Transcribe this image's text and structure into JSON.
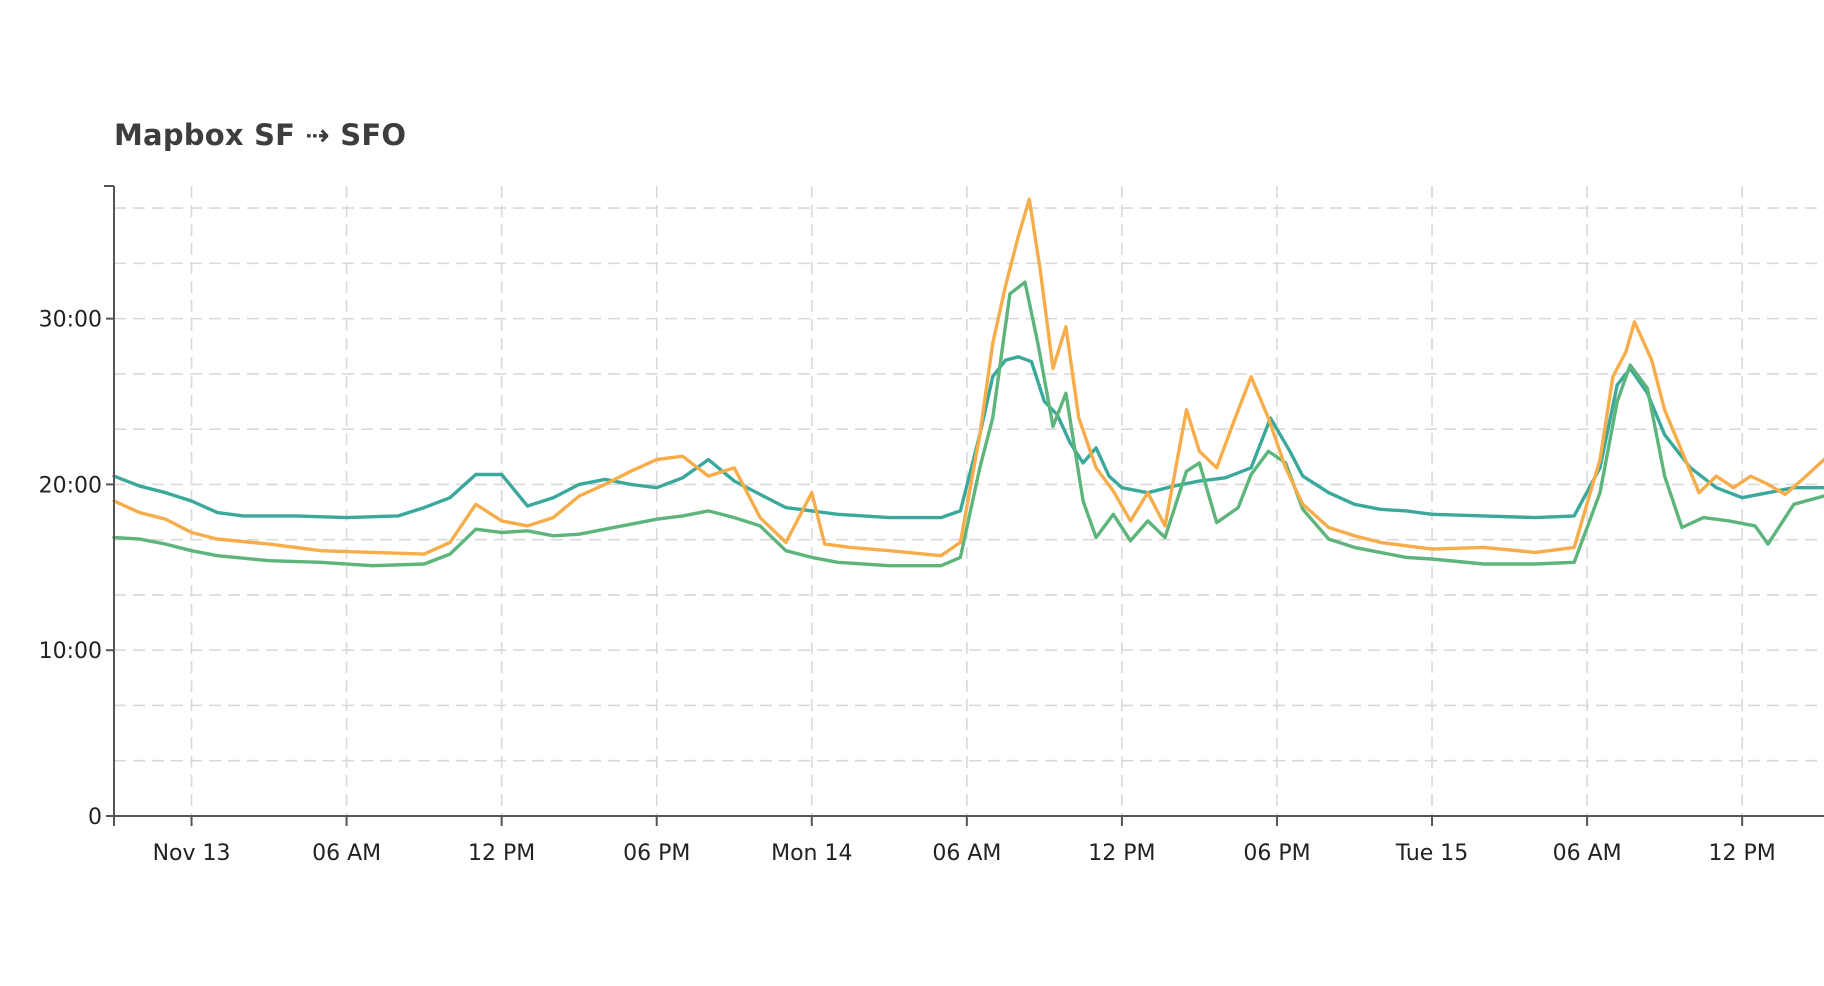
{
  "title": "Mapbox SF ⇢ SFO",
  "colors": {
    "series_a": "#3aa99b",
    "series_b": "#5db57c",
    "series_c": "#f6ad4a"
  },
  "chart_data": {
    "type": "line",
    "title": "Mapbox SF ⇢ SFO",
    "x_range": [
      "2016-11-12T21:00",
      "2016-11-15T15:10"
    ],
    "y_range_minutes": [
      0,
      38
    ],
    "y_ticks": [
      {
        "value": 0,
        "label": "0"
      },
      {
        "value": 10,
        "label": "10:00"
      },
      {
        "value": 20,
        "label": "20:00"
      },
      {
        "value": 30,
        "label": "30:00"
      }
    ],
    "x_ticks": [
      {
        "value": "2016-11-13T00:00",
        "label": "Nov 13"
      },
      {
        "value": "2016-11-13T06:00",
        "label": "06 AM"
      },
      {
        "value": "2016-11-13T12:00",
        "label": "12 PM"
      },
      {
        "value": "2016-11-13T18:00",
        "label": "06 PM"
      },
      {
        "value": "2016-11-14T00:00",
        "label": "Mon 14"
      },
      {
        "value": "2016-11-14T06:00",
        "label": "06 AM"
      },
      {
        "value": "2016-11-14T12:00",
        "label": "12 PM"
      },
      {
        "value": "2016-11-14T18:00",
        "label": "06 PM"
      },
      {
        "value": "2016-11-15T00:00",
        "label": "Tue 15"
      },
      {
        "value": "2016-11-15T06:00",
        "label": "06 AM"
      },
      {
        "value": "2016-11-15T12:00",
        "label": "12 PM"
      }
    ],
    "grid": true,
    "y_unit": "minutes",
    "series": [
      {
        "color": "#3aa99b",
        "points": [
          [
            "2016-11-12T21:00",
            20.5
          ],
          [
            "2016-11-12T22:00",
            19.9
          ],
          [
            "2016-11-12T23:00",
            19.5
          ],
          [
            "2016-11-13T00:00",
            19.0
          ],
          [
            "2016-11-13T01:00",
            18.3
          ],
          [
            "2016-11-13T02:00",
            18.1
          ],
          [
            "2016-11-13T04:00",
            18.1
          ],
          [
            "2016-11-13T06:00",
            18.0
          ],
          [
            "2016-11-13T08:00",
            18.1
          ],
          [
            "2016-11-13T09:00",
            18.6
          ],
          [
            "2016-11-13T10:00",
            19.2
          ],
          [
            "2016-11-13T11:00",
            20.6
          ],
          [
            "2016-11-13T12:00",
            20.6
          ],
          [
            "2016-11-13T13:00",
            18.7
          ],
          [
            "2016-11-13T14:00",
            19.2
          ],
          [
            "2016-11-13T15:00",
            20.0
          ],
          [
            "2016-11-13T16:00",
            20.3
          ],
          [
            "2016-11-13T17:00",
            20.0
          ],
          [
            "2016-11-13T18:00",
            19.8
          ],
          [
            "2016-11-13T19:00",
            20.4
          ],
          [
            "2016-11-13T20:00",
            21.5
          ],
          [
            "2016-11-13T21:00",
            20.2
          ],
          [
            "2016-11-13T22:00",
            19.4
          ],
          [
            "2016-11-13T23:00",
            18.6
          ],
          [
            "2016-11-14T00:00",
            18.4
          ],
          [
            "2016-11-14T01:00",
            18.2
          ],
          [
            "2016-11-14T03:00",
            18.0
          ],
          [
            "2016-11-14T05:00",
            18.0
          ],
          [
            "2016-11-14T05:45",
            18.4
          ],
          [
            "2016-11-14T06:30",
            23.0
          ],
          [
            "2016-11-14T07:00",
            26.5
          ],
          [
            "2016-11-14T07:30",
            27.5
          ],
          [
            "2016-11-14T08:00",
            27.7
          ],
          [
            "2016-11-14T08:30",
            27.4
          ],
          [
            "2016-11-14T09:00",
            25.0
          ],
          [
            "2016-11-14T09:30",
            24.2
          ],
          [
            "2016-11-14T10:00",
            22.5
          ],
          [
            "2016-11-14T10:30",
            21.3
          ],
          [
            "2016-11-14T11:00",
            22.2
          ],
          [
            "2016-11-14T11:30",
            20.5
          ],
          [
            "2016-11-14T12:00",
            19.8
          ],
          [
            "2016-11-14T13:00",
            19.5
          ],
          [
            "2016-11-14T14:00",
            19.9
          ],
          [
            "2016-11-14T15:00",
            20.2
          ],
          [
            "2016-11-14T16:00",
            20.4
          ],
          [
            "2016-11-14T17:00",
            21.0
          ],
          [
            "2016-11-14T17:45",
            24.0
          ],
          [
            "2016-11-14T18:30",
            22.0
          ],
          [
            "2016-11-14T19:00",
            20.5
          ],
          [
            "2016-11-14T20:00",
            19.5
          ],
          [
            "2016-11-14T21:00",
            18.8
          ],
          [
            "2016-11-14T22:00",
            18.5
          ],
          [
            "2016-11-14T23:00",
            18.4
          ],
          [
            "2016-11-15T00:00",
            18.2
          ],
          [
            "2016-11-15T02:00",
            18.1
          ],
          [
            "2016-11-15T04:00",
            18.0
          ],
          [
            "2016-11-15T05:30",
            18.1
          ],
          [
            "2016-11-15T06:30",
            21.0
          ],
          [
            "2016-11-15T07:10",
            26.0
          ],
          [
            "2016-11-15T07:40",
            27.0
          ],
          [
            "2016-11-15T08:20",
            25.5
          ],
          [
            "2016-11-15T09:00",
            23.0
          ],
          [
            "2016-11-15T10:00",
            21.0
          ],
          [
            "2016-11-15T11:00",
            19.8
          ],
          [
            "2016-11-15T12:00",
            19.2
          ],
          [
            "2016-11-15T13:00",
            19.5
          ],
          [
            "2016-11-15T14:00",
            19.8
          ],
          [
            "2016-11-15T15:10",
            19.8
          ]
        ]
      },
      {
        "color": "#5db57c",
        "points": [
          [
            "2016-11-12T21:00",
            16.8
          ],
          [
            "2016-11-12T22:00",
            16.7
          ],
          [
            "2016-11-12T23:00",
            16.4
          ],
          [
            "2016-11-13T00:00",
            16.0
          ],
          [
            "2016-11-13T01:00",
            15.7
          ],
          [
            "2016-11-13T03:00",
            15.4
          ],
          [
            "2016-11-13T05:00",
            15.3
          ],
          [
            "2016-11-13T07:00",
            15.1
          ],
          [
            "2016-11-13T09:00",
            15.2
          ],
          [
            "2016-11-13T10:00",
            15.8
          ],
          [
            "2016-11-13T11:00",
            17.3
          ],
          [
            "2016-11-13T12:00",
            17.1
          ],
          [
            "2016-11-13T13:00",
            17.2
          ],
          [
            "2016-11-13T14:00",
            16.9
          ],
          [
            "2016-11-13T15:00",
            17.0
          ],
          [
            "2016-11-13T16:00",
            17.3
          ],
          [
            "2016-11-13T17:00",
            17.6
          ],
          [
            "2016-11-13T18:00",
            17.9
          ],
          [
            "2016-11-13T19:00",
            18.1
          ],
          [
            "2016-11-13T20:00",
            18.4
          ],
          [
            "2016-11-13T21:00",
            18.0
          ],
          [
            "2016-11-13T22:00",
            17.5
          ],
          [
            "2016-11-13T23:00",
            16.0
          ],
          [
            "2016-11-14T00:00",
            15.6
          ],
          [
            "2016-11-14T01:00",
            15.3
          ],
          [
            "2016-11-14T03:00",
            15.1
          ],
          [
            "2016-11-14T05:00",
            15.1
          ],
          [
            "2016-11-14T05:45",
            15.6
          ],
          [
            "2016-11-14T06:30",
            21.0
          ],
          [
            "2016-11-14T07:00",
            24.0
          ],
          [
            "2016-11-14T07:40",
            31.5
          ],
          [
            "2016-11-14T08:15",
            32.2
          ],
          [
            "2016-11-14T08:45",
            28.5
          ],
          [
            "2016-11-14T09:20",
            23.5
          ],
          [
            "2016-11-14T09:50",
            25.5
          ],
          [
            "2016-11-14T10:30",
            19.0
          ],
          [
            "2016-11-14T11:00",
            16.8
          ],
          [
            "2016-11-14T11:40",
            18.2
          ],
          [
            "2016-11-14T12:20",
            16.6
          ],
          [
            "2016-11-14T13:00",
            17.8
          ],
          [
            "2016-11-14T13:40",
            16.8
          ],
          [
            "2016-11-14T14:30",
            20.8
          ],
          [
            "2016-11-14T15:00",
            21.3
          ],
          [
            "2016-11-14T15:40",
            17.7
          ],
          [
            "2016-11-14T16:30",
            18.6
          ],
          [
            "2016-11-14T17:00",
            20.6
          ],
          [
            "2016-11-14T17:40",
            22.0
          ],
          [
            "2016-11-14T18:20",
            21.3
          ],
          [
            "2016-11-14T19:00",
            18.5
          ],
          [
            "2016-11-14T20:00",
            16.7
          ],
          [
            "2016-11-14T21:00",
            16.2
          ],
          [
            "2016-11-14T22:00",
            15.9
          ],
          [
            "2016-11-14T23:00",
            15.6
          ],
          [
            "2016-11-15T00:00",
            15.5
          ],
          [
            "2016-11-15T02:00",
            15.2
          ],
          [
            "2016-11-15T04:00",
            15.2
          ],
          [
            "2016-11-15T05:30",
            15.3
          ],
          [
            "2016-11-15T06:30",
            19.5
          ],
          [
            "2016-11-15T07:10",
            25.0
          ],
          [
            "2016-11-15T07:40",
            27.2
          ],
          [
            "2016-11-15T08:20",
            25.8
          ],
          [
            "2016-11-15T09:00",
            20.5
          ],
          [
            "2016-11-15T09:40",
            17.4
          ],
          [
            "2016-11-15T10:30",
            18.0
          ],
          [
            "2016-11-15T11:30",
            17.8
          ],
          [
            "2016-11-15T12:30",
            17.5
          ],
          [
            "2016-11-15T13:00",
            16.4
          ],
          [
            "2016-11-15T14:00",
            18.8
          ],
          [
            "2016-11-15T15:10",
            19.3
          ]
        ]
      },
      {
        "color": "#f6ad4a",
        "points": [
          [
            "2016-11-12T21:00",
            19.0
          ],
          [
            "2016-11-12T22:00",
            18.3
          ],
          [
            "2016-11-12T23:00",
            17.9
          ],
          [
            "2016-11-13T00:00",
            17.1
          ],
          [
            "2016-11-13T01:00",
            16.7
          ],
          [
            "2016-11-13T03:00",
            16.4
          ],
          [
            "2016-11-13T05:00",
            16.0
          ],
          [
            "2016-11-13T07:00",
            15.9
          ],
          [
            "2016-11-13T09:00",
            15.8
          ],
          [
            "2016-11-13T10:00",
            16.5
          ],
          [
            "2016-11-13T11:00",
            18.8
          ],
          [
            "2016-11-13T12:00",
            17.8
          ],
          [
            "2016-11-13T13:00",
            17.5
          ],
          [
            "2016-11-13T14:00",
            18.0
          ],
          [
            "2016-11-13T15:00",
            19.3
          ],
          [
            "2016-11-13T16:00",
            20.0
          ],
          [
            "2016-11-13T17:00",
            20.8
          ],
          [
            "2016-11-13T18:00",
            21.5
          ],
          [
            "2016-11-13T19:00",
            21.7
          ],
          [
            "2016-11-13T20:00",
            20.5
          ],
          [
            "2016-11-13T21:00",
            21.0
          ],
          [
            "2016-11-13T22:00",
            18.0
          ],
          [
            "2016-11-13T23:00",
            16.5
          ],
          [
            "2016-11-14T00:00",
            19.5
          ],
          [
            "2016-11-14T00:30",
            16.4
          ],
          [
            "2016-11-14T01:30",
            16.2
          ],
          [
            "2016-11-14T03:00",
            16.0
          ],
          [
            "2016-11-14T05:00",
            15.7
          ],
          [
            "2016-11-14T05:45",
            16.5
          ],
          [
            "2016-11-14T06:30",
            23.0
          ],
          [
            "2016-11-14T07:00",
            28.5
          ],
          [
            "2016-11-14T07:30",
            32.0
          ],
          [
            "2016-11-14T08:00",
            35.0
          ],
          [
            "2016-11-14T08:25",
            37.2
          ],
          [
            "2016-11-14T08:50",
            33.0
          ],
          [
            "2016-11-14T09:20",
            27.0
          ],
          [
            "2016-11-14T09:50",
            29.5
          ],
          [
            "2016-11-14T10:20",
            24.0
          ],
          [
            "2016-11-14T11:00",
            21.0
          ],
          [
            "2016-11-14T11:40",
            19.6
          ],
          [
            "2016-11-14T12:20",
            17.8
          ],
          [
            "2016-11-14T13:00",
            19.5
          ],
          [
            "2016-11-14T13:40",
            17.5
          ],
          [
            "2016-11-14T14:30",
            24.5
          ],
          [
            "2016-11-14T15:00",
            22.0
          ],
          [
            "2016-11-14T15:40",
            21.0
          ],
          [
            "2016-11-14T16:20",
            23.8
          ],
          [
            "2016-11-14T17:00",
            26.5
          ],
          [
            "2016-11-14T17:40",
            24.0
          ],
          [
            "2016-11-14T18:20",
            21.0
          ],
          [
            "2016-11-14T19:00",
            18.8
          ],
          [
            "2016-11-14T20:00",
            17.4
          ],
          [
            "2016-11-14T21:00",
            16.9
          ],
          [
            "2016-11-14T22:00",
            16.5
          ],
          [
            "2016-11-14T23:00",
            16.3
          ],
          [
            "2016-11-15T00:00",
            16.1
          ],
          [
            "2016-11-15T02:00",
            16.2
          ],
          [
            "2016-11-15T04:00",
            15.9
          ],
          [
            "2016-11-15T05:30",
            16.2
          ],
          [
            "2016-11-15T06:30",
            21.5
          ],
          [
            "2016-11-15T07:00",
            26.5
          ],
          [
            "2016-11-15T07:30",
            28.0
          ],
          [
            "2016-11-15T07:50",
            29.8
          ],
          [
            "2016-11-15T08:30",
            27.5
          ],
          [
            "2016-11-15T09:00",
            24.5
          ],
          [
            "2016-11-15T09:40",
            22.0
          ],
          [
            "2016-11-15T10:20",
            19.5
          ],
          [
            "2016-11-15T11:00",
            20.5
          ],
          [
            "2016-11-15T11:40",
            19.8
          ],
          [
            "2016-11-15T12:20",
            20.5
          ],
          [
            "2016-11-15T13:00",
            20.0
          ],
          [
            "2016-11-15T13:40",
            19.4
          ],
          [
            "2016-11-15T14:20",
            20.3
          ],
          [
            "2016-11-15T15:10",
            21.5
          ]
        ]
      }
    ]
  }
}
